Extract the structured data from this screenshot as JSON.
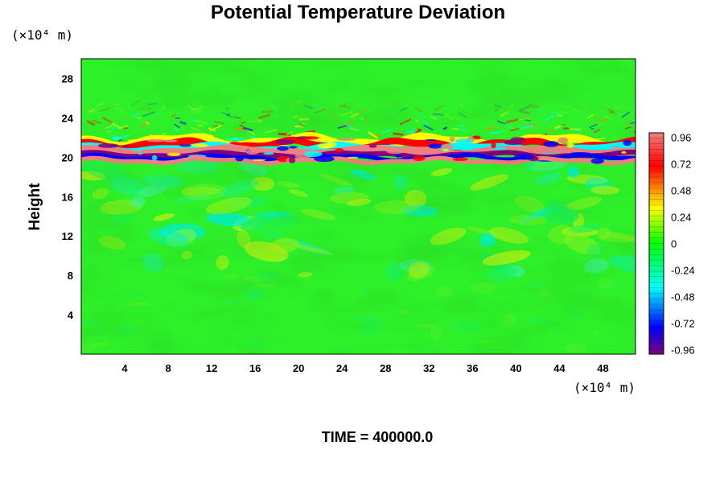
{
  "chart_data": {
    "type": "heatmap",
    "title": "Potential Temperature Deviation",
    "ylabel": "Height",
    "x_unit": "(×10⁴ m)",
    "y_unit": "(×10⁴ m)",
    "x_ticks": [
      4,
      8,
      12,
      16,
      20,
      24,
      28,
      32,
      36,
      40,
      44,
      48
    ],
    "y_ticks": [
      4,
      8,
      12,
      16,
      20,
      24,
      28
    ],
    "xlim": [
      0,
      51
    ],
    "ylim": [
      0,
      30
    ],
    "colorbar": {
      "labels": [
        "0.96",
        "0.72",
        "0.48",
        "0.24",
        "0",
        "-0.24",
        "-0.48",
        "-0.72",
        "-0.96"
      ],
      "range": [
        -1.0,
        1.0
      ],
      "stops": [
        "#800080",
        "#0000ff",
        "#00ffff",
        "#00ff00",
        "#ffff00",
        "#ff0000",
        "#f08080"
      ]
    },
    "background_value": 0,
    "features": [
      {
        "description": "strong positive/negative banded layer",
        "y_range": [
          19.5,
          21.8
        ],
        "min": -0.96,
        "max": 0.96
      },
      {
        "description": "gravity wave oscillations above layer",
        "y_range": [
          21.8,
          25.5
        ],
        "amplitude": 0.7
      },
      {
        "description": "weak turbulent eddies below layer",
        "y_range": [
          8,
          19.5
        ],
        "amplitude": 0.3
      }
    ]
  },
  "footer": {
    "time_label": "TIME = 400000.0"
  }
}
